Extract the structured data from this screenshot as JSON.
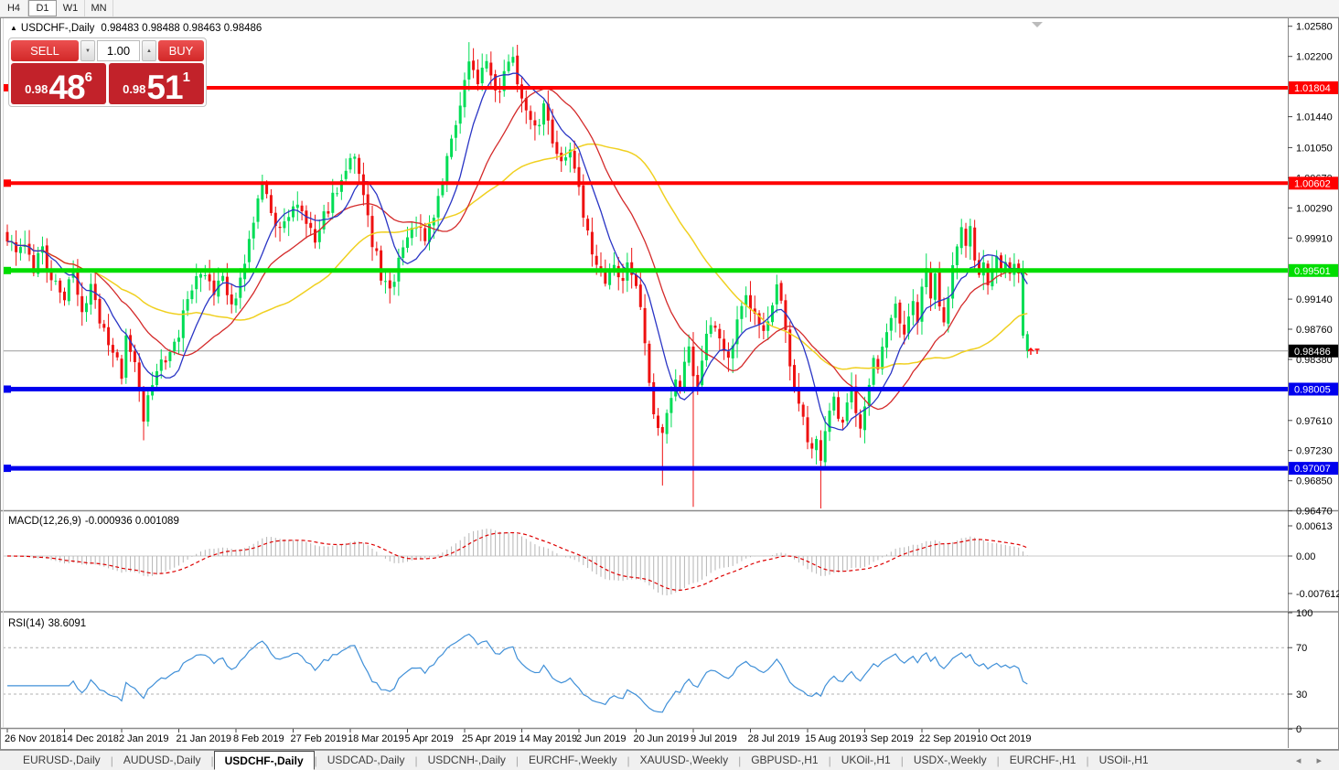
{
  "toolbar": {
    "timeframes": [
      {
        "label": "H4",
        "active": false
      },
      {
        "label": "D1",
        "active": true
      },
      {
        "label": "W1",
        "active": false
      },
      {
        "label": "MN",
        "active": false
      }
    ]
  },
  "chart": {
    "collapse_arrow": "▲",
    "title": "USDCHF-,Daily",
    "ohlc": "0.98483 0.98488 0.98463 0.98486",
    "trade_panel": {
      "sell_label": "SELL",
      "buy_label": "BUY",
      "volume": "1.00",
      "volume_down_glyph": "▼",
      "volume_up_glyph": "▲",
      "sell_price": {
        "small": "0.98",
        "big": "48",
        "sup": "6"
      },
      "buy_price": {
        "small": "0.98",
        "big": "51",
        "sup": "1"
      }
    }
  },
  "colors": {
    "candle_up": "#00dd55",
    "candle_down": "#ee1111",
    "current_price_line": "#9a9a9a",
    "current_chip_bg": "#000000",
    "macd_hist": "#b5b5b5",
    "macd_signal": "#dd0000",
    "rsi_line": "#4090d8",
    "rsi_levels": "#b0b0b0",
    "axis_text": "#000000",
    "shift_marker": "#bbbbbb",
    "trade_arrow": "#ff0000"
  },
  "chart_data": {
    "type": "candlestick",
    "symbol": "USDCHF-",
    "timeframe": "Daily",
    "current_price": 0.98486,
    "current_price_label": "0.98486",
    "current_bar": {
      "open": 0.98483,
      "high": 0.98488,
      "low": 0.98463,
      "close": 0.98486
    },
    "num_candles": 233,
    "close_keypoints": [
      [
        0,
        0.9992
      ],
      [
        2,
        0.9968
      ],
      [
        4,
        0.9987
      ],
      [
        6,
        0.9955
      ],
      [
        8,
        0.9975
      ],
      [
        10,
        0.9942
      ],
      [
        13,
        0.992
      ],
      [
        15,
        0.9945
      ],
      [
        17,
        0.9905
      ],
      [
        19,
        0.9928
      ],
      [
        21,
        0.989
      ],
      [
        23,
        0.9862
      ],
      [
        25,
        0.984
      ],
      [
        26,
        0.9815
      ],
      [
        27,
        0.9868
      ],
      [
        29,
        0.9842
      ],
      [
        31,
        0.9762
      ],
      [
        33,
        0.9808
      ],
      [
        35,
        0.983
      ],
      [
        37,
        0.9855
      ],
      [
        39,
        0.9872
      ],
      [
        41,
        0.9915
      ],
      [
        43,
        0.9942
      ],
      [
        45,
        0.9948
      ],
      [
        47,
        0.992
      ],
      [
        49,
        0.9945
      ],
      [
        51,
        0.9908
      ],
      [
        53,
        0.9938
      ],
      [
        55,
        0.9995
      ],
      [
        57,
        1.004
      ],
      [
        58,
        1.0058
      ],
      [
        60,
        1.0022
      ],
      [
        62,
        0.9998
      ],
      [
        64,
        1.0015
      ],
      [
        66,
        1.004
      ],
      [
        68,
        1.0015
      ],
      [
        70,
        0.9992
      ],
      [
        72,
        1.0018
      ],
      [
        74,
        1.0042
      ],
      [
        76,
        1.006
      ],
      [
        78,
        1.0085
      ],
      [
        79,
        1.01
      ],
      [
        81,
        1.0038
      ],
      [
        83,
        0.9988
      ],
      [
        85,
        0.9945
      ],
      [
        87,
        0.992
      ],
      [
        89,
        0.9958
      ],
      [
        91,
        0.9992
      ],
      [
        93,
        1.0008
      ],
      [
        95,
        0.9985
      ],
      [
        97,
        1.0022
      ],
      [
        99,
        1.0065
      ],
      [
        101,
        1.011
      ],
      [
        103,
        1.0165
      ],
      [
        105,
        1.0212
      ],
      [
        107,
        1.0188
      ],
      [
        109,
        1.0215
      ],
      [
        111,
        1.017
      ],
      [
        113,
        1.0195
      ],
      [
        115,
        1.022
      ],
      [
        116,
        1.0185
      ],
      [
        118,
        1.0148
      ],
      [
        120,
        1.0128
      ],
      [
        122,
        1.0155
      ],
      [
        124,
        1.0108
      ],
      [
        126,
        1.009
      ],
      [
        128,
        1.0108
      ],
      [
        130,
        1.005
      ],
      [
        132,
        1.0
      ],
      [
        134,
        0.9952
      ],
      [
        136,
        0.993
      ],
      [
        138,
        0.9962
      ],
      [
        140,
        0.9938
      ],
      [
        141,
        0.9965
      ],
      [
        143,
        0.993
      ],
      [
        145,
        0.9865
      ],
      [
        146,
        0.98
      ],
      [
        147,
        0.9768
      ],
      [
        148,
        0.9752
      ],
      [
        149,
        0.9742
      ],
      [
        150,
        0.9768
      ],
      [
        151,
        0.9792
      ],
      [
        152,
        0.9815
      ],
      [
        153,
        0.9795
      ],
      [
        154,
        0.9838
      ],
      [
        155,
        0.9858
      ],
      [
        156,
        0.982
      ],
      [
        157,
        0.98
      ],
      [
        158,
        0.9835
      ],
      [
        159,
        0.9862
      ],
      [
        160,
        0.9888
      ],
      [
        162,
        0.986
      ],
      [
        164,
        0.9842
      ],
      [
        166,
        0.9882
      ],
      [
        168,
        0.9915
      ],
      [
        170,
        0.9892
      ],
      [
        172,
        0.987
      ],
      [
        174,
        0.9902
      ],
      [
        175,
        0.993
      ],
      [
        176,
        0.9905
      ],
      [
        177,
        0.9868
      ],
      [
        178,
        0.9832
      ],
      [
        179,
        0.9808
      ],
      [
        180,
        0.9782
      ],
      [
        181,
        0.9758
      ],
      [
        182,
        0.9742
      ],
      [
        183,
        0.9722
      ],
      [
        184,
        0.9735
      ],
      [
        185,
        0.9715
      ],
      [
        186,
        0.9748
      ],
      [
        187,
        0.9775
      ],
      [
        188,
        0.9788
      ],
      [
        189,
        0.977
      ],
      [
        190,
        0.9758
      ],
      [
        191,
        0.9782
      ],
      [
        192,
        0.9802
      ],
      [
        193,
        0.9775
      ],
      [
        194,
        0.9758
      ],
      [
        195,
        0.9772
      ],
      [
        196,
        0.9805
      ],
      [
        197,
        0.9838
      ],
      [
        198,
        0.982
      ],
      [
        199,
        0.985
      ],
      [
        200,
        0.9872
      ],
      [
        201,
        0.9892
      ],
      [
        202,
        0.9912
      ],
      [
        203,
        0.9888
      ],
      [
        204,
        0.9862
      ],
      [
        205,
        0.9895
      ],
      [
        206,
        0.9912
      ],
      [
        207,
        0.9888
      ],
      [
        208,
        0.9922
      ],
      [
        209,
        0.9948
      ],
      [
        210,
        0.992
      ],
      [
        211,
        0.9942
      ],
      [
        212,
        0.9912
      ],
      [
        213,
        0.989
      ],
      [
        214,
        0.992
      ],
      [
        215,
        0.995
      ],
      [
        216,
        0.9975
      ],
      [
        217,
        1.0005
      ],
      [
        218,
        0.998
      ],
      [
        219,
        1.0002
      ],
      [
        220,
        0.9968
      ],
      [
        221,
        0.9938
      ],
      [
        222,
        0.9958
      ],
      [
        223,
        0.9925
      ],
      [
        224,
        0.9945
      ],
      [
        225,
        0.9968
      ],
      [
        226,
        0.9942
      ],
      [
        227,
        0.9962
      ],
      [
        228,
        0.994
      ],
      [
        229,
        0.9952
      ],
      [
        230,
        0.9942
      ],
      [
        231,
        0.9868
      ],
      [
        232,
        0.98486
      ]
    ],
    "force_up_indices": [
      231,
      232
    ],
    "wick_overrides": [
      {
        "i": 31,
        "low": 0.9736
      },
      {
        "i": 105,
        "high": 1.0238
      },
      {
        "i": 115,
        "high": 1.0232
      },
      {
        "i": 149,
        "low": 0.9679
      },
      {
        "i": 156,
        "low": 0.9652
      },
      {
        "i": 185,
        "low": 0.965
      }
    ],
    "moving_averages": [
      {
        "name": "slow",
        "period": 44,
        "color": "#f0d020",
        "width": 1.5
      },
      {
        "name": "medium",
        "period": 21,
        "color": "#d42a2a",
        "width": 1.3
      },
      {
        "name": "fast",
        "period": 9,
        "color": "#2a35c5",
        "width": 1.3
      }
    ],
    "hlines": [
      {
        "price": 1.01804,
        "label": "1.01804",
        "color": "#ff0000",
        "width": 4
      },
      {
        "price": 1.00602,
        "label": "1.00602",
        "color": "#ff0000",
        "width": 4
      },
      {
        "price": 0.99501,
        "label": "0.99501",
        "color": "#00dd00",
        "width": 5
      },
      {
        "price": 0.98005,
        "label": "0.98005",
        "color": "#0000ee",
        "width": 5
      },
      {
        "price": 0.97007,
        "label": "0.97007",
        "color": "#0000ee",
        "width": 5
      }
    ],
    "y_axis": {
      "ticks": [
        "1.02580",
        "1.02200",
        "1.01440",
        "1.01050",
        "1.00670",
        "1.00290",
        "0.99910",
        "0.99140",
        "0.98760",
        "0.98380",
        "0.97610",
        "0.97230",
        "0.96850",
        "0.96470"
      ],
      "range": [
        0.9647,
        1.0264
      ]
    },
    "x_axis": {
      "labels": [
        "26 Nov 2018",
        "14 Dec 2018",
        "2 Jan 2019",
        "21 Jan 2019",
        "8 Feb 2019",
        "27 Feb 2019",
        "18 Mar 2019",
        "5 Apr 2019",
        "25 Apr 2019",
        "14 May 2019",
        "2 Jun 2019",
        "20 Jun 2019",
        "9 Jul 2019",
        "28 Jul 2019",
        "15 Aug 2019",
        "3 Sep 2019",
        "22 Sep 2019",
        "10 Oct 2019"
      ],
      "candles_per_tick": 13
    },
    "indicators": {
      "macd": {
        "label": "MACD(12,26,9)",
        "values": "-0.000936 0.001089",
        "ticks": [
          "0.00613",
          "0.00",
          "-0.007612"
        ],
        "fast": 12,
        "slow": 26,
        "signal": 9
      },
      "rsi": {
        "label": "RSI(14)",
        "value": "38.6091",
        "period": 14,
        "ticks": [
          "100",
          "70",
          "30",
          "0"
        ],
        "levels": [
          70,
          30
        ]
      }
    }
  },
  "tabs": {
    "items": [
      {
        "label": "EURUSD-,Daily",
        "active": false
      },
      {
        "label": "AUDUSD-,Daily",
        "active": false
      },
      {
        "label": "USDCHF-,Daily",
        "active": true
      },
      {
        "label": "USDCAD-,Daily",
        "active": false
      },
      {
        "label": "USDCNH-,Daily",
        "active": false
      },
      {
        "label": "EURCHF-,Weekly",
        "active": false
      },
      {
        "label": "XAUUSD-,Weekly",
        "active": false
      },
      {
        "label": "GBPUSD-,H1",
        "active": false
      },
      {
        "label": "UKOil-,H1",
        "active": false
      },
      {
        "label": "USDX-,Weekly",
        "active": false
      },
      {
        "label": "EURCHF-,H1",
        "active": false
      },
      {
        "label": "USOil-,H1",
        "active": false
      }
    ],
    "scroll_left": "◂",
    "scroll_right": "▸"
  }
}
